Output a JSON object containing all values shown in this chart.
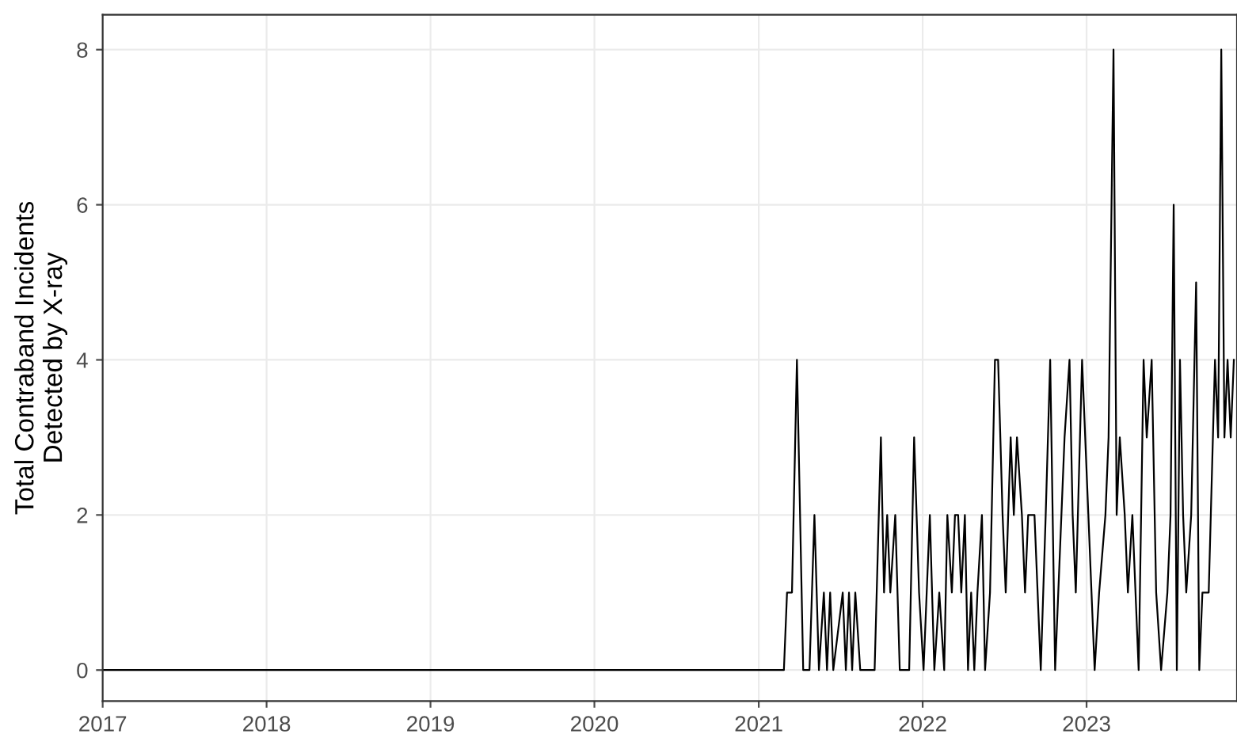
{
  "chart_data": {
    "type": "line",
    "ylabel": "Total Contraband Incidents\nDetected by X-ray",
    "x": [
      "2017-01-01",
      "2021-02-26",
      "2021-03-05",
      "2021-03-16",
      "2021-03-27",
      "2021-04-10",
      "2021-04-24",
      "2021-05-05",
      "2021-05-15",
      "2021-05-26",
      "2021-06-02",
      "2021-06-09",
      "2021-06-16",
      "2021-07-07",
      "2021-07-14",
      "2021-07-21",
      "2021-07-28",
      "2021-08-04",
      "2021-08-15",
      "2021-09-16",
      "2021-09-30",
      "2021-10-07",
      "2021-10-14",
      "2021-10-21",
      "2021-11-01",
      "2021-11-11",
      "2021-12-02",
      "2021-12-13",
      "2021-12-24",
      "2022-01-03",
      "2022-01-10",
      "2022-01-17",
      "2022-01-27",
      "2022-02-07",
      "2022-02-18",
      "2022-02-25",
      "2022-03-07",
      "2022-03-14",
      "2022-03-21",
      "2022-03-28",
      "2022-04-05",
      "2022-04-12",
      "2022-04-19",
      "2022-04-26",
      "2022-05-03",
      "2022-05-13",
      "2022-05-20",
      "2022-05-31",
      "2022-06-11",
      "2022-06-18",
      "2022-06-28",
      "2022-07-05",
      "2022-07-16",
      "2022-07-23",
      "2022-07-30",
      "2022-08-10",
      "2022-08-17",
      "2022-08-24",
      "2022-09-07",
      "2022-09-14",
      "2022-09-21",
      "2022-10-02",
      "2022-10-12",
      "2022-10-23",
      "2022-10-30",
      "2022-11-13",
      "2022-11-24",
      "2022-12-01",
      "2022-12-08",
      "2022-12-22",
      "2023-01-05",
      "2023-01-12",
      "2023-01-19",
      "2023-01-29",
      "2023-02-12",
      "2023-02-19",
      "2023-03-02",
      "2023-03-09",
      "2023-03-16",
      "2023-03-27",
      "2023-04-03",
      "2023-04-13",
      "2023-04-20",
      "2023-04-27",
      "2023-05-08",
      "2023-05-15",
      "2023-05-26",
      "2023-06-05",
      "2023-06-16",
      "2023-06-30",
      "2023-07-07",
      "2023-07-14",
      "2023-07-21",
      "2023-07-28",
      "2023-08-04",
      "2023-08-11",
      "2023-08-22",
      "2023-09-02",
      "2023-09-09",
      "2023-09-16",
      "2023-09-30",
      "2023-10-14",
      "2023-10-21",
      "2023-10-28",
      "2023-11-04",
      "2023-11-11",
      "2023-11-18",
      "2023-11-25"
    ],
    "series": [
      {
        "color": "#000000",
        "values": [
          0,
          0,
          1,
          1,
          4,
          0,
          0,
          2,
          0,
          1,
          0,
          1,
          0,
          1,
          0,
          1,
          0,
          1,
          0,
          0,
          3,
          1,
          2,
          1,
          2,
          0,
          0,
          3,
          1,
          0,
          1,
          2,
          0,
          1,
          0,
          2,
          1,
          2,
          2,
          1,
          2,
          0,
          1,
          0,
          1,
          2,
          0,
          1,
          4,
          4,
          2,
          1,
          3,
          2,
          3,
          2,
          1,
          2,
          2,
          1,
          0,
          2,
          4,
          0,
          1,
          3,
          4,
          2,
          1,
          4,
          2,
          1,
          0,
          1,
          2,
          3,
          8,
          2,
          3,
          2,
          1,
          2,
          1,
          0,
          4,
          3,
          4,
          1,
          0,
          1,
          2,
          6,
          0,
          4,
          2,
          1,
          2,
          5,
          0,
          1,
          1,
          4,
          3,
          8,
          3,
          4,
          3,
          4
        ]
      }
    ],
    "xlim": [
      "2017-01-01",
      "2023-12-02"
    ],
    "xticks": [
      {
        "value": "2017-01-01",
        "label": "2017"
      },
      {
        "value": "2018-01-01",
        "label": "2018"
      },
      {
        "value": "2019-01-01",
        "label": "2019"
      },
      {
        "value": "2020-01-01",
        "label": "2020"
      },
      {
        "value": "2021-01-01",
        "label": "2021"
      },
      {
        "value": "2022-01-01",
        "label": "2022"
      },
      {
        "value": "2023-01-01",
        "label": "2023"
      }
    ],
    "ylim": [
      -0.4,
      8.45
    ],
    "yticks": [
      0,
      2,
      4,
      6,
      8
    ],
    "grid": true,
    "line_style": "solid",
    "marker": "none"
  }
}
